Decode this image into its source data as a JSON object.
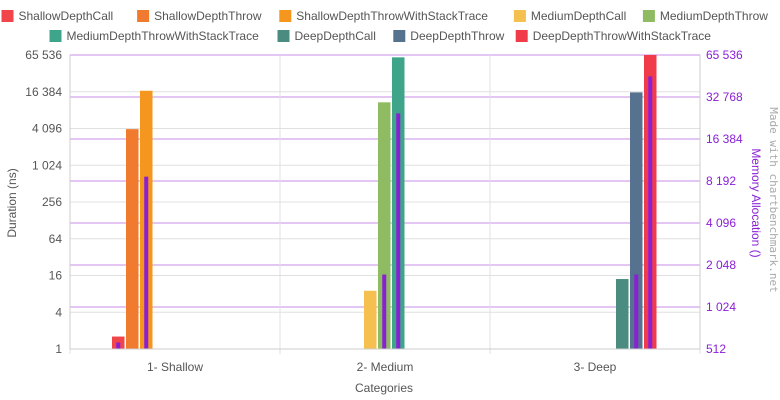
{
  "chart_data": {
    "type": "bar",
    "categories": [
      "1- Shallow",
      "2- Medium",
      "3- Deep"
    ],
    "xlabel": "Categories",
    "ylabel": "Duration (ns)",
    "y2label": "Memory Allocation ()",
    "yscale": "log2",
    "y2scale": "log2",
    "ylim": [
      1,
      65536
    ],
    "y2lim": [
      512,
      65536
    ],
    "yticks": [
      "1",
      "4",
      "16",
      "64",
      "256",
      "1 024",
      "4 096",
      "16 384",
      "65 536"
    ],
    "y2ticks": [
      "512",
      "1 024",
      "2 048",
      "4 096",
      "8 192",
      "16 384",
      "32 768",
      "65 536"
    ],
    "legend_position": "top",
    "grid": true,
    "watermark": "Made with chartbenchmark.net",
    "series": [
      {
        "name": "ShallowDepthCall",
        "color": "#f0464a",
        "values": [
          1.6,
          null,
          null
        ],
        "memory": [
          570,
          null,
          null
        ]
      },
      {
        "name": "ShallowDepthThrow",
        "color": "#f07a2e",
        "values": [
          4000,
          null,
          null
        ],
        "memory": [
          null,
          null,
          null
        ]
      },
      {
        "name": "ShallowDepthThrowWithStackTrace",
        "color": "#f5961e",
        "values": [
          17000,
          null,
          null
        ],
        "memory": [
          8800,
          null,
          null
        ]
      },
      {
        "name": "MediumDepthCall",
        "color": "#f5c04f",
        "values": [
          null,
          9,
          null
        ],
        "memory": [
          null,
          null,
          null
        ]
      },
      {
        "name": "MediumDepthThrow",
        "color": "#8fbc62",
        "values": [
          null,
          11000,
          null
        ],
        "memory": [
          null,
          1750,
          null
        ]
      },
      {
        "name": "MediumDepthThrowWithStackTrace",
        "color": "#3fa58a",
        "values": [
          null,
          60000,
          null
        ],
        "memory": [
          null,
          25000,
          null
        ]
      },
      {
        "name": "DeepDepthCall",
        "color": "#4a8c80",
        "values": [
          null,
          null,
          14
        ],
        "memory": [
          null,
          null,
          null
        ]
      },
      {
        "name": "DeepDepthThrow",
        "color": "#56728f",
        "values": [
          null,
          null,
          16000
        ],
        "memory": [
          null,
          null,
          1750
        ]
      },
      {
        "name": "DeepDepthThrowWithStackTrace",
        "color": "#f03c4a",
        "values": [
          null,
          null,
          85000
        ],
        "memory": [
          null,
          null,
          46000
        ]
      }
    ],
    "memory_color": "#8a1fd6"
  }
}
